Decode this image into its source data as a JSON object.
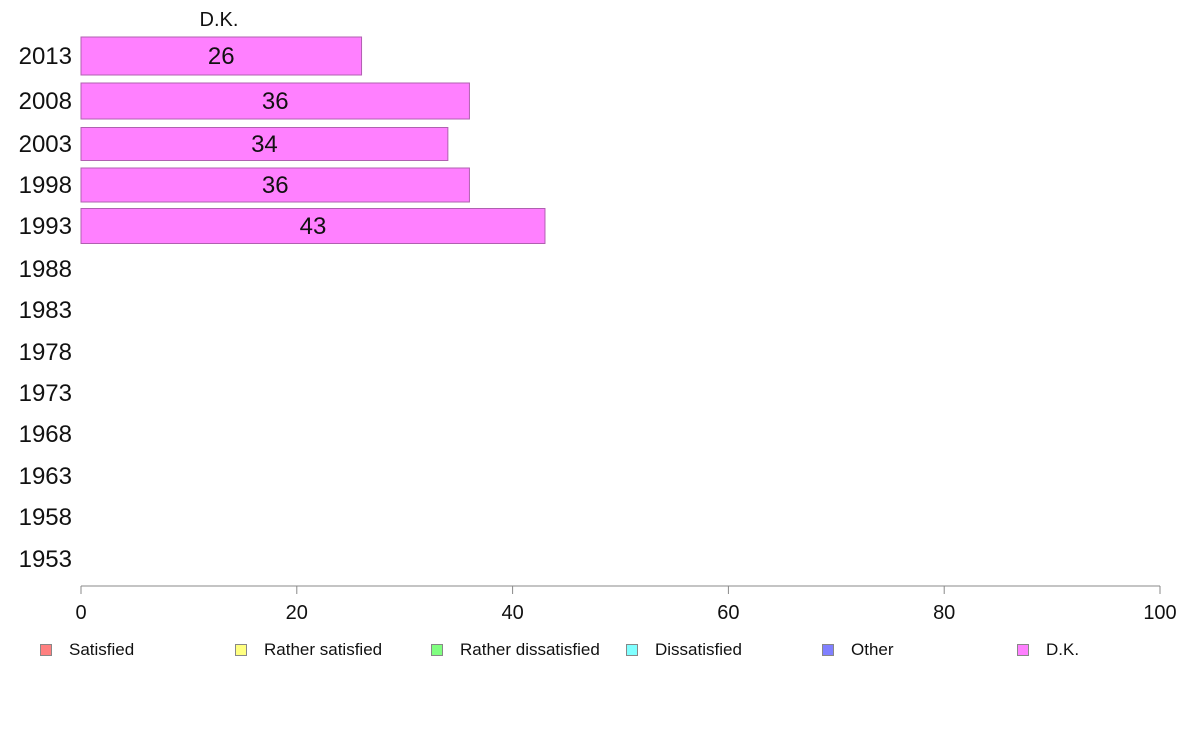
{
  "chart_data": {
    "type": "bar",
    "orientation": "horizontal",
    "series_header": "D.K.",
    "categories": [
      "2013",
      "2008",
      "2003",
      "1998",
      "1993",
      "1988",
      "1983",
      "1978",
      "1973",
      "1968",
      "1963",
      "1958",
      "1953"
    ],
    "series": [
      {
        "name": "D.K.",
        "color": "#ff80ff",
        "values": [
          26,
          36,
          34,
          36,
          43,
          null,
          null,
          null,
          null,
          null,
          null,
          null,
          null
        ]
      }
    ],
    "xlim": [
      0,
      100
    ],
    "xticks": [
      "0",
      "20",
      "40",
      "60",
      "80",
      "100"
    ],
    "grid": false,
    "legend_position": "bottom",
    "legend": [
      {
        "label": "Satisfied",
        "color": "#ff8080"
      },
      {
        "label": "Rather satisfied",
        "color": "#ffff80"
      },
      {
        "label": "Rather dissatisfied",
        "color": "#80ff80"
      },
      {
        "label": "Dissatisfied",
        "color": "#80ffff"
      },
      {
        "label": "Other",
        "color": "#8080ff"
      },
      {
        "label": "D.K.",
        "color": "#ff80ff"
      }
    ]
  }
}
